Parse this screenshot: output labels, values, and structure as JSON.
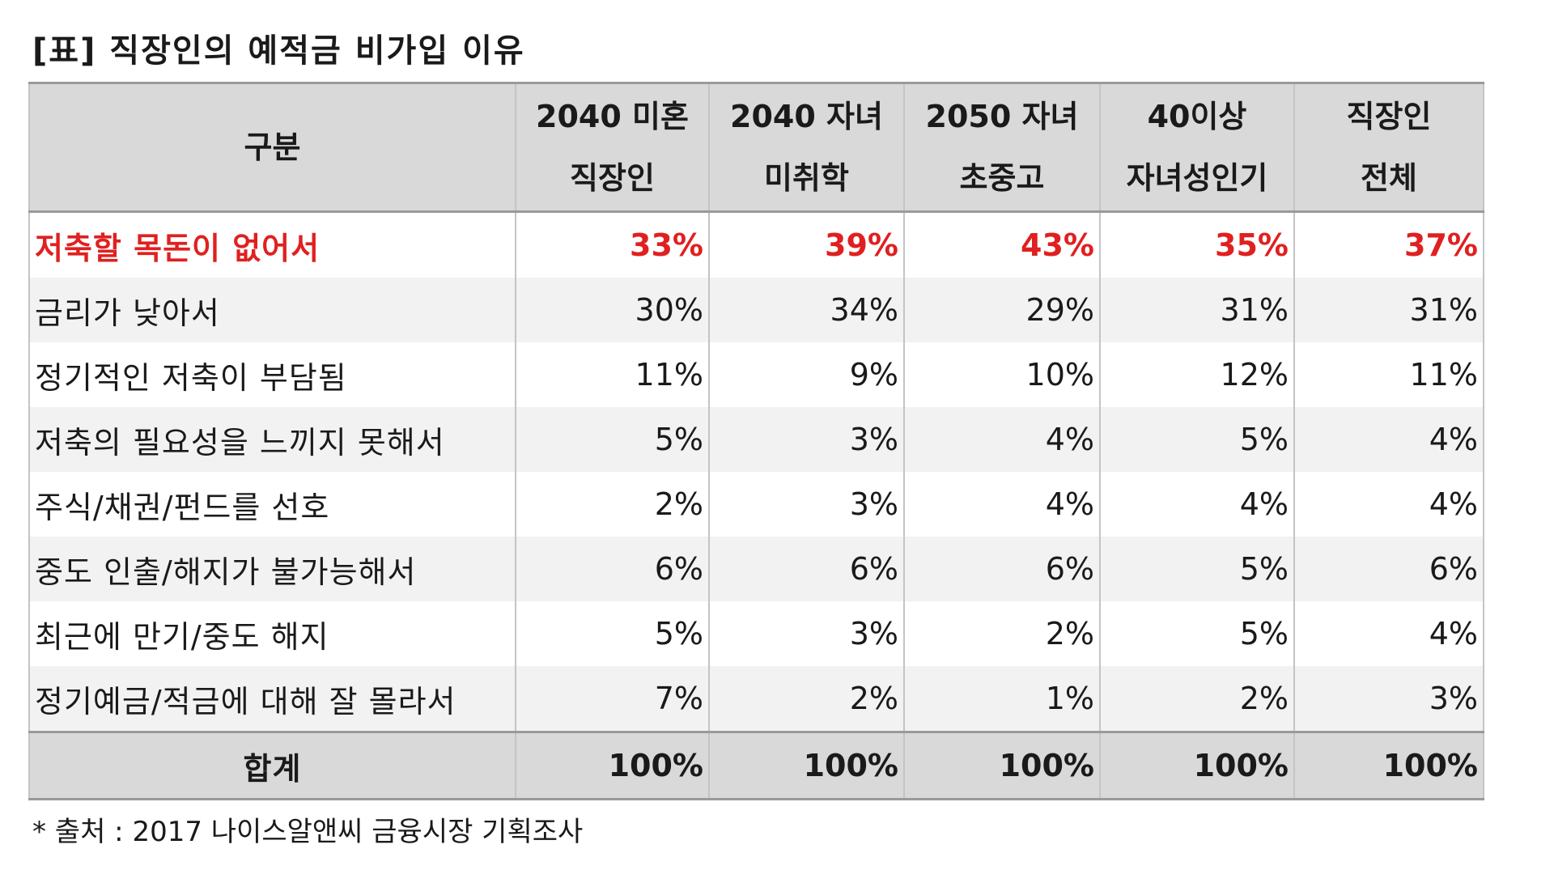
{
  "caption": "[표] 직장인의 예적금 비가입 이유",
  "table": {
    "headers": [
      [
        "구분"
      ],
      [
        "2040 미혼",
        "직장인"
      ],
      [
        "2040 자녀",
        "미취학"
      ],
      [
        "2050 자녀",
        "초중고"
      ],
      [
        "40이상",
        "자녀성인기"
      ],
      [
        "직장인",
        "전체"
      ]
    ],
    "rows": [
      {
        "label": "저축할 목돈이 없어서",
        "values": [
          "33%",
          "39%",
          "43%",
          "35%",
          "37%"
        ],
        "highlight": true
      },
      {
        "label": "금리가 낮아서",
        "values": [
          "30%",
          "34%",
          "29%",
          "31%",
          "31%"
        ]
      },
      {
        "label": "정기적인 저축이 부담됨",
        "values": [
          "11%",
          "9%",
          "10%",
          "12%",
          "11%"
        ]
      },
      {
        "label": "저축의 필요성을 느끼지 못해서",
        "values": [
          "5%",
          "3%",
          "4%",
          "5%",
          "4%"
        ]
      },
      {
        "label": "주식/채권/펀드를 선호",
        "values": [
          "2%",
          "3%",
          "4%",
          "4%",
          "4%"
        ]
      },
      {
        "label": "중도 인출/해지가 불가능해서",
        "values": [
          "6%",
          "6%",
          "6%",
          "5%",
          "6%"
        ]
      },
      {
        "label": "최근에 만기/중도 해지",
        "values": [
          "5%",
          "3%",
          "2%",
          "5%",
          "4%"
        ]
      },
      {
        "label": "정기예금/적금에 대해 잘 몰라서",
        "values": [
          "7%",
          "2%",
          "1%",
          "2%",
          "3%"
        ]
      }
    ],
    "total": {
      "label": "합계",
      "values": [
        "100%",
        "100%",
        "100%",
        "100%",
        "100%"
      ]
    }
  },
  "source_note": "* 출처 : 2017 나이스알앤씨 금융시장 기획조사",
  "colors": {
    "highlight": "#e02020",
    "header_bg": "#d9d9d9",
    "stripe_bg": "#f2f2f2"
  }
}
